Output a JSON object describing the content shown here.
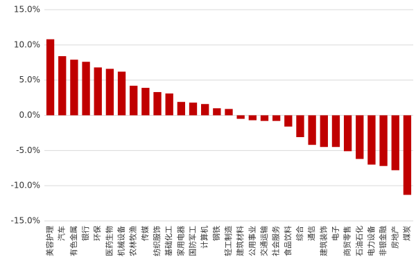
{
  "chart_data": {
    "type": "bar",
    "categories": [
      "美容护理",
      "汽车",
      "有色金属",
      "银行",
      "环保",
      "医药生物",
      "机械设备",
      "农林牧渔",
      "传媒",
      "纺织服饰",
      "基础化工",
      "家用电器",
      "国防军工",
      "计算机",
      "钢铁",
      "轻工制造",
      "建筑材料",
      "公用事业",
      "交通运输",
      "社会服务",
      "食品饮料",
      "综合",
      "通信",
      "建筑装饰",
      "电子",
      "商贸零售",
      "石油石化",
      "电力设备",
      "非银金融",
      "房地产",
      "煤炭"
    ],
    "values": [
      10.8,
      8.4,
      7.9,
      7.6,
      6.8,
      6.6,
      6.2,
      4.2,
      3.9,
      3.3,
      3.1,
      1.9,
      1.8,
      1.6,
      1.0,
      0.9,
      -0.5,
      -0.7,
      -0.8,
      -0.8,
      -1.6,
      -3.1,
      -4.2,
      -4.5,
      -4.5,
      -5.1,
      -6.2,
      -7.0,
      -7.2,
      -7.8,
      -11.3
    ],
    "color": "#c00000",
    "ylim": [
      -15,
      15
    ],
    "yticks": [
      {
        "value": -15,
        "label": "-15.0%"
      },
      {
        "value": -10,
        "label": "-10.0%"
      },
      {
        "value": -5,
        "label": "-5.0%"
      },
      {
        "value": 0,
        "label": "0.0%"
      },
      {
        "value": 5,
        "label": "5.0%"
      },
      {
        "value": 10,
        "label": "10.0%"
      },
      {
        "value": 15,
        "label": "15.0%"
      }
    ],
    "grid": true
  }
}
